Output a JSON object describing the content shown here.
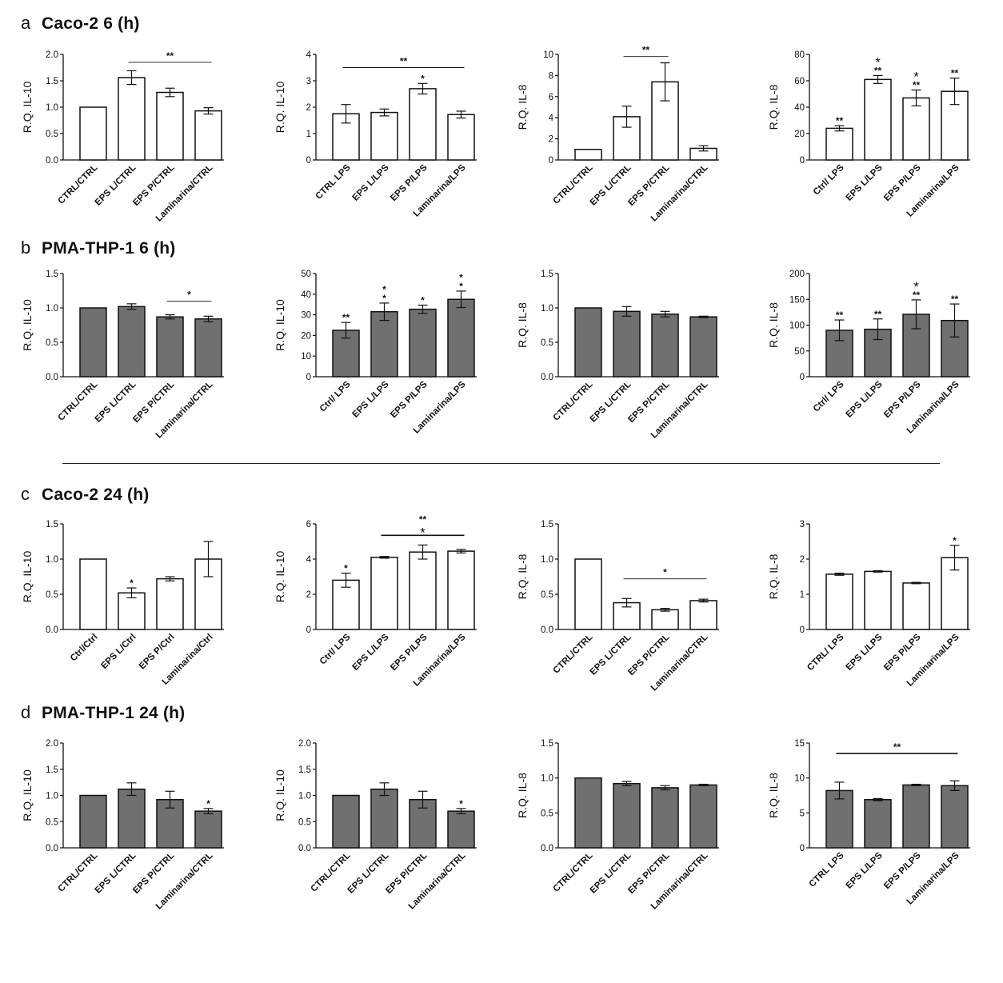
{
  "sections": [
    {
      "letter": "a",
      "title": "Caco-2 6 (h)"
    },
    {
      "letter": "b",
      "title": "PMA-THP-1 6 (h)"
    },
    {
      "letter": "c",
      "title": "Caco-2 24 (h)"
    },
    {
      "letter": "d",
      "title": "PMA-THP-1 24 (h)"
    }
  ],
  "colors": {
    "white_bar": "#ffffff",
    "gray_bar": "#707070",
    "stroke": "#111111"
  },
  "chart_data": [
    {
      "type": "bar",
      "section": "a",
      "ylabel": "R.Q. IL-10",
      "ylim": [
        0,
        2.0
      ],
      "ticks": [
        "0.0",
        "0.5",
        "1.0",
        "1.5",
        "2.0"
      ],
      "categories": [
        "CTRL/CTRL",
        "EPS L/CTRL",
        "EPS P/CTRL",
        "Laminarina/CTRL"
      ],
      "values": [
        1.0,
        1.56,
        1.28,
        0.93
      ],
      "errors": [
        0,
        0.13,
        0.08,
        0.06
      ],
      "fill": "white",
      "bar_sig": [],
      "bracket": {
        "from": 1,
        "to": 3,
        "y": 1.85,
        "lines": [
          "**"
        ]
      }
    },
    {
      "type": "bar",
      "section": "a",
      "ylabel": "R.Q. IL-10",
      "ylim": [
        0,
        4
      ],
      "ticks": [
        "0",
        "1",
        "2",
        "3",
        "4"
      ],
      "categories": [
        "CTRL LPS",
        "EPS L/LPS",
        "EPS P/LPS",
        "Laminarina/LPS"
      ],
      "values": [
        1.75,
        1.8,
        2.7,
        1.72
      ],
      "errors": [
        0.35,
        0.13,
        0.2,
        0.13
      ],
      "fill": "white",
      "bar_sig": [
        [],
        [],
        [
          "*"
        ],
        []
      ],
      "bracket": {
        "from": 0,
        "to": 3,
        "y": 3.5,
        "lines": [
          "**"
        ]
      }
    },
    {
      "type": "bar",
      "section": "a",
      "ylabel": "R.Q. IL-8",
      "ylim": [
        0,
        10
      ],
      "ticks": [
        "0",
        "2",
        "4",
        "6",
        "8",
        "10"
      ],
      "categories": [
        "CTRL/CTRL",
        "EPS L/CTRL",
        "EPS P/CTRL",
        "Laminarina/CTRL"
      ],
      "values": [
        1.0,
        4.1,
        7.4,
        1.1
      ],
      "errors": [
        0,
        1.0,
        1.8,
        0.25
      ],
      "fill": "white",
      "bar_sig": [],
      "bracket": {
        "from": 1,
        "to": 2,
        "y": 9.8,
        "lines": [
          "**"
        ]
      }
    },
    {
      "type": "bar",
      "section": "a",
      "ylabel": "R.Q. IL-8",
      "ylim": [
        0,
        80
      ],
      "ticks": [
        "0",
        "20",
        "40",
        "60",
        "80"
      ],
      "categories": [
        "Ctrl/ LPS",
        "EPS L/LPS",
        "EPS P/LPS",
        "Laminarina/LPS"
      ],
      "values": [
        24,
        61,
        47,
        52
      ],
      "errors": [
        2,
        3,
        6,
        10
      ],
      "fill": "white",
      "bar_sig": [
        [
          "**"
        ],
        [
          "**",
          "*"
        ],
        [
          "**",
          "*"
        ],
        [
          "**"
        ]
      ],
      "bracket": null
    },
    {
      "type": "bar",
      "section": "b",
      "ylabel": "R.Q. IL-10",
      "ylim": [
        0,
        1.5
      ],
      "ticks": [
        "0.0",
        "0.5",
        "1.0",
        "1.5"
      ],
      "categories": [
        "CTRL/CTRL",
        "EPS L/CTRL",
        "EPS P/CTRL",
        "Laminarina/CTRL"
      ],
      "values": [
        1.0,
        1.02,
        0.87,
        0.84
      ],
      "errors": [
        0,
        0.04,
        0.03,
        0.04
      ],
      "fill": "gray",
      "bar_sig": [],
      "bracket": {
        "from": 2,
        "to": 3,
        "y": 1.1,
        "lines": [
          "*"
        ]
      }
    },
    {
      "type": "bar",
      "section": "b",
      "ylabel": "R.Q. IL-10",
      "ylim": [
        0,
        50
      ],
      "ticks": [
        "0",
        "10",
        "20",
        "30",
        "40",
        "50"
      ],
      "categories": [
        "Ctrl/ LPS",
        "EPS L/LPS",
        "EPS P/LPS",
        "Laminarina/LPS"
      ],
      "values": [
        22.5,
        31.5,
        32.7,
        37.5
      ],
      "errors": [
        3.8,
        4.2,
        2.0,
        4.0
      ],
      "fill": "gray",
      "bar_sig": [
        [
          "**"
        ],
        [
          "*",
          "*"
        ],
        [
          "*"
        ],
        [
          "*",
          "*"
        ]
      ],
      "bracket": null
    },
    {
      "type": "bar",
      "section": "b",
      "ylabel": "R.Q. IL-8",
      "ylim": [
        0,
        1.5
      ],
      "ticks": [
        "0.0",
        "0.5",
        "1.0",
        "1.5"
      ],
      "categories": [
        "CTRL/CTRL",
        "EPS L/CTRL",
        "EPS P/CTRL",
        "Laminarina/CTRL"
      ],
      "values": [
        1.0,
        0.95,
        0.91,
        0.87
      ],
      "errors": [
        0,
        0.07,
        0.04,
        0.01
      ],
      "fill": "gray",
      "bar_sig": [],
      "bracket": null
    },
    {
      "type": "bar",
      "section": "b",
      "ylabel": "R.Q. IL-8",
      "ylim": [
        0,
        200
      ],
      "ticks": [
        "0",
        "50",
        "100",
        "150",
        "200"
      ],
      "categories": [
        "Ctrl/ LPS",
        "EPS L/LPS",
        "EPS P/LPS",
        "Laminarina/LPS"
      ],
      "values": [
        90,
        92,
        121,
        109
      ],
      "errors": [
        20,
        20,
        28,
        32
      ],
      "fill": "gray",
      "bar_sig": [
        [
          "**"
        ],
        [
          "**"
        ],
        [
          "**",
          "*"
        ],
        [
          "**"
        ]
      ],
      "bracket": null
    },
    {
      "type": "bar",
      "section": "c",
      "ylabel": "R.Q. IL-10",
      "ylim": [
        0,
        1.5
      ],
      "ticks": [
        "0.0",
        "0.5",
        "1.0",
        "1.5"
      ],
      "categories": [
        "Ctrl/Ctrl",
        "EPS L/Ctrl",
        "EPS P/Ctrl",
        "Laminarina/Ctrl"
      ],
      "values": [
        1.0,
        0.52,
        0.72,
        1.0
      ],
      "errors": [
        0,
        0.07,
        0.03,
        0.25
      ],
      "fill": "white",
      "bar_sig": [
        [],
        [
          "*"
        ],
        [],
        []
      ],
      "bracket": null
    },
    {
      "type": "bar",
      "section": "c",
      "ylabel": "R.Q. IL-10",
      "ylim": [
        0,
        6
      ],
      "ticks": [
        "0",
        "2",
        "4",
        "6"
      ],
      "categories": [
        "Ctrl/ LPS",
        "EPS L/LPS",
        "EPS P/LPS",
        "Laminarina/LPS"
      ],
      "values": [
        2.8,
        4.1,
        4.4,
        4.45
      ],
      "errors": [
        0.4,
        0.05,
        0.4,
        0.1
      ],
      "fill": "white",
      "bar_sig": [
        [
          "*"
        ],
        [],
        [],
        []
      ],
      "bracket": {
        "from": 1,
        "to": 3,
        "y": 5.35,
        "lines": [
          "*",
          "**"
        ],
        "thick": true
      }
    },
    {
      "type": "bar",
      "section": "c",
      "ylabel": "R.Q. IL-8",
      "ylim": [
        0,
        1.5
      ],
      "ticks": [
        "0.0",
        "0.5",
        "1.0",
        "1.5"
      ],
      "categories": [
        "CTRL/CTRL",
        "EPS L/CTRL",
        "EPS P/CTRL",
        "Laminarina/CTRL"
      ],
      "values": [
        1.0,
        0.38,
        0.28,
        0.41
      ],
      "errors": [
        0,
        0.06,
        0.02,
        0.02
      ],
      "fill": "white",
      "bar_sig": [],
      "bracket": {
        "from": 1,
        "to": 3,
        "y": 0.72,
        "lines": [
          "*"
        ]
      }
    },
    {
      "type": "bar",
      "section": "c",
      "ylabel": "R.Q. IL-8",
      "ylim": [
        0,
        3
      ],
      "ticks": [
        "0",
        "1",
        "2",
        "3"
      ],
      "categories": [
        "CTRL/ LPS",
        "EPS L/LPS",
        "EPS P/LPS",
        "Laminarina/LPS"
      ],
      "values": [
        1.57,
        1.65,
        1.32,
        2.04
      ],
      "errors": [
        0.03,
        0.02,
        0.02,
        0.35
      ],
      "fill": "white",
      "bar_sig": [
        [],
        [],
        [],
        [
          "*"
        ]
      ],
      "bracket": null
    },
    {
      "type": "bar",
      "section": "d",
      "ylabel": "R.Q. IL-10",
      "ylim": [
        0,
        2.0
      ],
      "ticks": [
        "0.0",
        "0.5",
        "1.0",
        "1.5",
        "2.0"
      ],
      "categories": [
        "CTRL/CTRL",
        "EPS L/CTRL",
        "EPS P/CTRL",
        "Laminarina/CTRL"
      ],
      "values": [
        1.0,
        1.12,
        0.92,
        0.7
      ],
      "errors": [
        0,
        0.12,
        0.16,
        0.05
      ],
      "fill": "gray",
      "bar_sig": [
        [],
        [],
        [],
        [
          "*"
        ]
      ],
      "bracket": null
    },
    {
      "type": "bar",
      "section": "d",
      "ylabel": "R.Q. IL-10",
      "ylim": [
        0,
        2.0
      ],
      "ticks": [
        "0.0",
        "0.5",
        "1.0",
        "1.5",
        "2.0"
      ],
      "categories": [
        "CTRL/CTRL",
        "EPS L/CTRL",
        "EPS P/CTRL",
        "Laminarina/CTRL"
      ],
      "values": [
        1.0,
        1.12,
        0.92,
        0.7
      ],
      "errors": [
        0,
        0.12,
        0.16,
        0.05
      ],
      "fill": "gray",
      "bar_sig": [
        [],
        [],
        [],
        [
          "*"
        ]
      ],
      "bracket": null
    },
    {
      "type": "bar",
      "section": "d",
      "ylabel": "R.Q. IL-8",
      "ylim": [
        0,
        1.5
      ],
      "ticks": [
        "0.0",
        "0.5",
        "1.0",
        "1.5"
      ],
      "categories": [
        "CTRL/CTRL",
        "EPS L/CTRL",
        "EPS P/CTRL",
        "Laminarina/CTRL"
      ],
      "values": [
        1.0,
        0.92,
        0.86,
        0.9
      ],
      "errors": [
        0,
        0.03,
        0.03,
        0.01
      ],
      "fill": "gray",
      "bar_sig": [],
      "bracket": null
    },
    {
      "type": "bar",
      "section": "d",
      "ylabel": "R.Q. IL-8",
      "ylim": [
        0,
        15
      ],
      "ticks": [
        "0",
        "5",
        "10",
        "15"
      ],
      "categories": [
        "CTRL LPS",
        "EPS L/LPS",
        "EPS P/LPS",
        "Laminarina/LPS"
      ],
      "values": [
        8.2,
        6.9,
        9.0,
        8.9
      ],
      "errors": [
        1.2,
        0.15,
        0.1,
        0.7
      ],
      "fill": "gray",
      "bar_sig": [],
      "bracket": {
        "from": 0,
        "to": 3,
        "y": 13.5,
        "lines": [
          "**"
        ],
        "thick": true
      }
    }
  ]
}
